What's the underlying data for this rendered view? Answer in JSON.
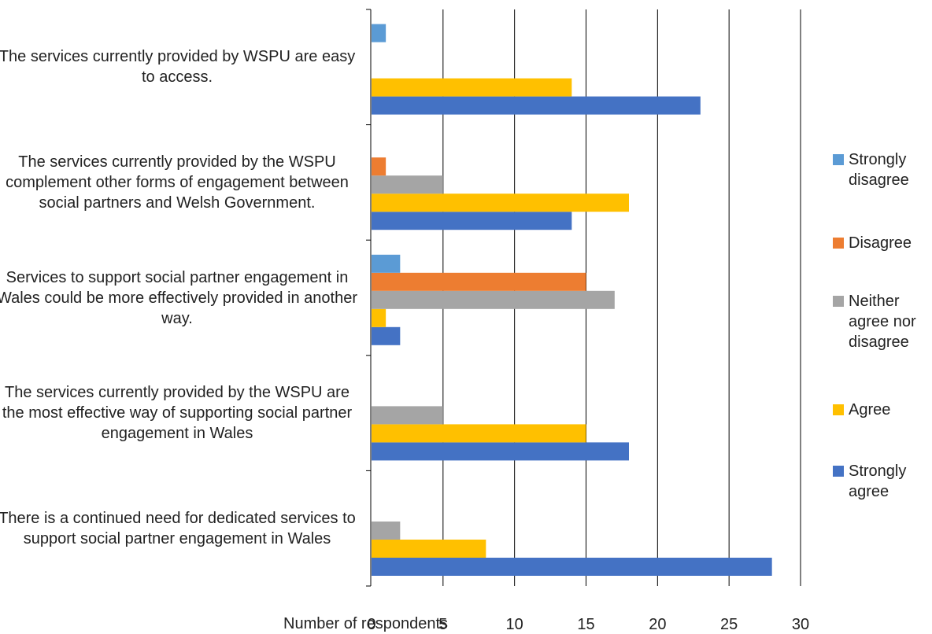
{
  "chart_data": {
    "type": "bar",
    "orientation": "horizontal",
    "title": "",
    "xlabel": "Number of respondents",
    "ylabel": "",
    "xlim": [
      0,
      30
    ],
    "xticks": [
      0,
      5,
      10,
      15,
      20,
      25,
      30
    ],
    "grid": "vertical",
    "legend_position": "right",
    "categories": [
      "There is a continued need for dedicated services to support social partner engagement in Wales",
      "The services currently provided by the WSPU are the most effective way of supporting social partner engagement in Wales",
      "Services to support social partner engagement in Wales could be more effectively provided in another way.",
      "The services currently provided by the WSPU complement other forms of engagement between social partners and Welsh Government.",
      "The services currently provided by WSPU are easy to access."
    ],
    "series": [
      {
        "name": "Strongly agree",
        "color": "#4472C4",
        "values": [
          28,
          18,
          2,
          14,
          23
        ]
      },
      {
        "name": "Agree",
        "color": "#FFC000",
        "values": [
          8,
          15,
          1,
          18,
          14
        ]
      },
      {
        "name": "Neither agree nor disagree",
        "color": "#A5A5A5",
        "values": [
          2,
          5,
          17,
          5,
          0
        ]
      },
      {
        "name": "Disagree",
        "color": "#ED7D31",
        "values": [
          0,
          0,
          15,
          1,
          0
        ]
      },
      {
        "name": "Strongly disagree",
        "color": "#5B9BD5",
        "values": [
          0,
          0,
          2,
          0,
          1
        ]
      }
    ],
    "legend_order": [
      "Strongly disagree",
      "Disagree",
      "Neither agree nor disagree",
      "Agree",
      "Strongly agree"
    ]
  }
}
